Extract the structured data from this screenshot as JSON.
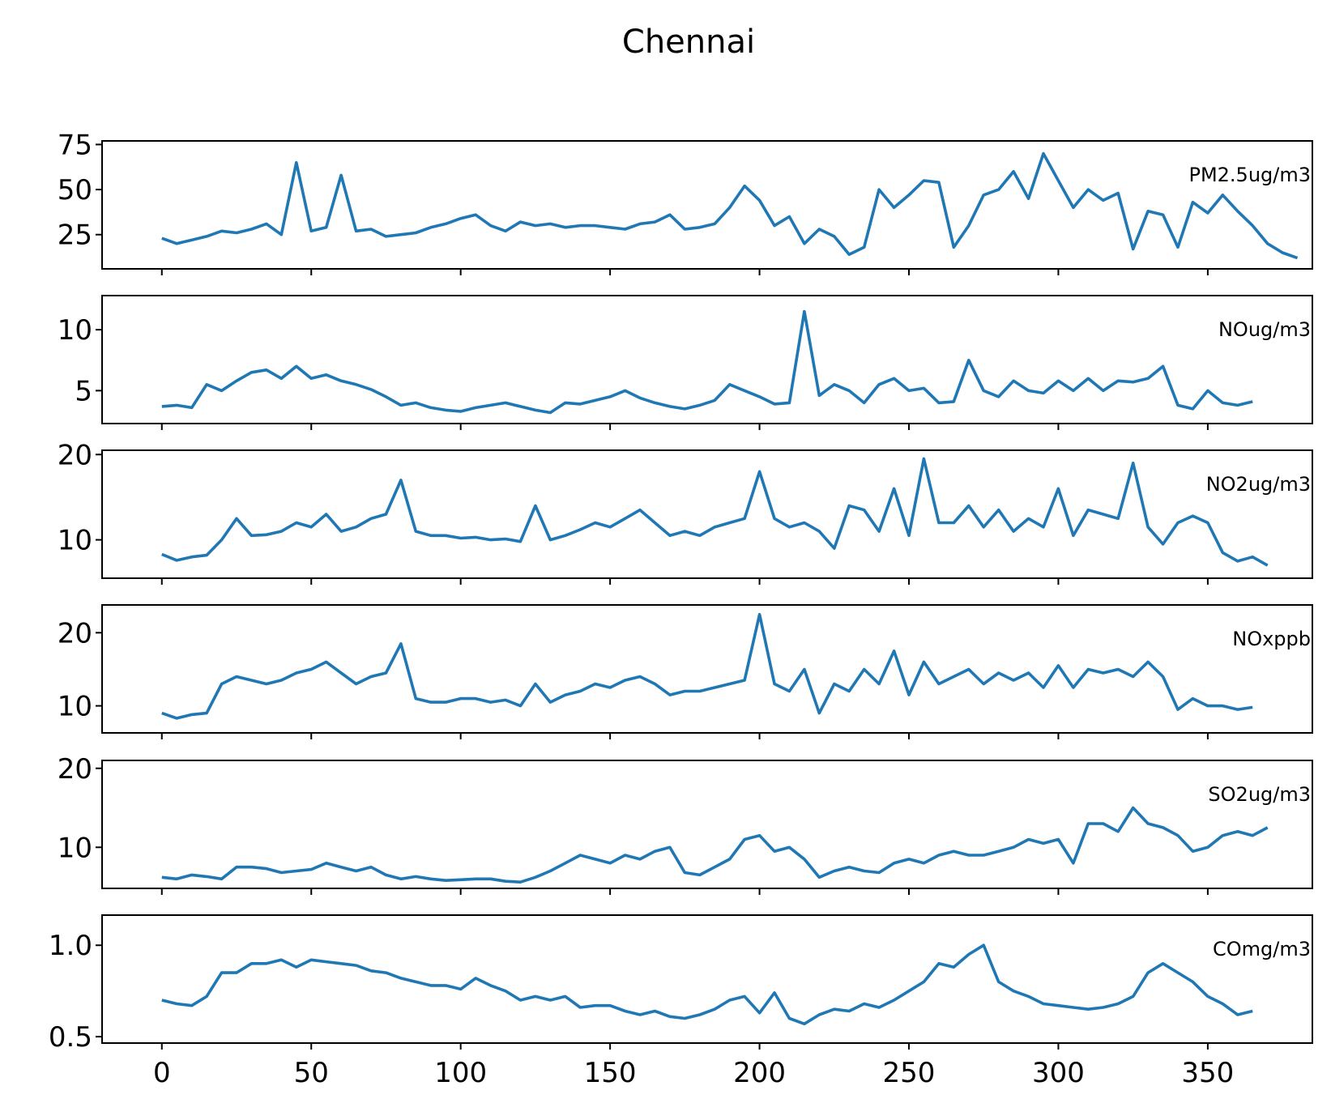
{
  "figure": {
    "title": "Chennai",
    "line_color": "#1f77b4"
  },
  "chart_data": [
    {
      "type": "line",
      "title": "",
      "xlabel": "",
      "ylabel": "",
      "xlim": [
        -20,
        385
      ],
      "ylim": [
        6,
        77
      ],
      "yticks": [
        25,
        50,
        75
      ],
      "xticks": [
        0,
        50,
        100,
        150,
        200,
        250,
        300,
        350
      ],
      "x_tick_labels_visible": false,
      "grid": false,
      "legend": "right",
      "series": [
        {
          "name": "PM2.5ug/m3",
          "x_start": 0,
          "x_step": 5,
          "values": [
            23,
            20,
            22,
            24,
            27,
            26,
            28,
            31,
            25,
            65,
            27,
            29,
            58,
            27,
            28,
            24,
            25,
            26,
            29,
            31,
            34,
            36,
            30,
            27,
            32,
            30,
            31,
            29,
            30,
            30,
            29,
            28,
            31,
            32,
            36,
            28,
            29,
            31,
            40,
            52,
            44,
            30,
            35,
            20,
            28,
            24,
            14,
            18,
            50,
            40,
            47,
            55,
            54,
            18,
            30,
            47,
            50,
            60,
            45,
            70,
            55,
            40,
            50,
            44,
            48,
            17,
            38,
            36,
            18,
            43,
            37,
            47,
            38,
            30,
            20,
            15,
            12
          ]
        }
      ]
    },
    {
      "type": "line",
      "title": "",
      "xlabel": "",
      "ylabel": "",
      "xlim": [
        -20,
        385
      ],
      "ylim": [
        2.3,
        12.8
      ],
      "yticks": [
        5,
        10
      ],
      "xticks": [
        0,
        50,
        100,
        150,
        200,
        250,
        300,
        350
      ],
      "x_tick_labels_visible": false,
      "grid": false,
      "legend": "right",
      "series": [
        {
          "name": "NOug/m3",
          "x_start": 0,
          "x_step": 5,
          "values": [
            3.7,
            3.8,
            3.6,
            5.5,
            5.0,
            5.8,
            6.5,
            6.7,
            6.0,
            7.0,
            6.0,
            6.3,
            5.8,
            5.5,
            5.1,
            4.5,
            3.8,
            4.0,
            3.6,
            3.4,
            3.3,
            3.6,
            3.8,
            4.0,
            3.7,
            3.4,
            3.2,
            4.0,
            3.9,
            4.2,
            4.5,
            5.0,
            4.4,
            4.0,
            3.7,
            3.5,
            3.8,
            4.2,
            5.5,
            5.0,
            4.5,
            3.9,
            4.0,
            11.5,
            4.6,
            5.5,
            5.0,
            4.0,
            5.5,
            6.0,
            5.0,
            5.2,
            4.0,
            4.1,
            7.5,
            5.0,
            4.5,
            5.8,
            5.0,
            4.8,
            5.8,
            5.0,
            6.0,
            5.0,
            5.8,
            5.7,
            6.0,
            7.0,
            3.8,
            3.5,
            5.0,
            4.0,
            3.8,
            4.1
          ]
        }
      ]
    },
    {
      "type": "line",
      "title": "",
      "xlabel": "",
      "ylabel": "",
      "xlim": [
        -20,
        385
      ],
      "ylim": [
        5.5,
        20.5
      ],
      "yticks": [
        10,
        20
      ],
      "xticks": [
        0,
        50,
        100,
        150,
        200,
        250,
        300,
        350
      ],
      "x_tick_labels_visible": false,
      "grid": false,
      "legend": "right",
      "series": [
        {
          "name": "NO2ug/m3",
          "x_start": 0,
          "x_step": 5,
          "values": [
            8.3,
            7.6,
            8.0,
            8.2,
            10.0,
            12.5,
            10.5,
            10.6,
            11.0,
            12.0,
            11.5,
            13.0,
            11.0,
            11.5,
            12.5,
            13.0,
            17.0,
            11.0,
            10.5,
            10.5,
            10.2,
            10.3,
            10.0,
            10.1,
            9.8,
            14.0,
            10.0,
            10.5,
            11.2,
            12.0,
            11.5,
            12.5,
            13.5,
            12.0,
            10.5,
            11.0,
            10.5,
            11.5,
            12.0,
            12.5,
            18.0,
            12.5,
            11.5,
            12.0,
            11.0,
            9.0,
            14.0,
            13.5,
            11.0,
            16.0,
            10.5,
            19.5,
            12.0,
            12.0,
            14.0,
            11.5,
            13.5,
            11.0,
            12.5,
            11.5,
            16.0,
            10.5,
            13.5,
            13.0,
            12.5,
            19.0,
            11.5,
            9.5,
            12.0,
            12.8,
            12.0,
            8.5,
            7.5,
            8.0,
            7.0
          ]
        }
      ]
    },
    {
      "type": "line",
      "title": "",
      "xlabel": "",
      "ylabel": "",
      "xlim": [
        -20,
        385
      ],
      "ylim": [
        6.3,
        23.8
      ],
      "yticks": [
        10,
        20
      ],
      "xticks": [
        0,
        50,
        100,
        150,
        200,
        250,
        300,
        350
      ],
      "x_tick_labels_visible": false,
      "grid": false,
      "legend": "right",
      "series": [
        {
          "name": "NOxppb",
          "x_start": 0,
          "x_step": 5,
          "values": [
            9.0,
            8.3,
            8.8,
            9.0,
            13.0,
            14.0,
            13.5,
            13.0,
            13.5,
            14.5,
            15.0,
            16.0,
            14.5,
            13.0,
            14.0,
            14.5,
            18.5,
            11.0,
            10.5,
            10.5,
            11.0,
            11.0,
            10.5,
            10.8,
            10.0,
            13.0,
            10.5,
            11.5,
            12.0,
            13.0,
            12.5,
            13.5,
            14.0,
            13.0,
            11.5,
            12.0,
            12.0,
            12.5,
            13.0,
            13.5,
            22.5,
            13.0,
            12.0,
            15.0,
            9.0,
            13.0,
            12.0,
            15.0,
            13.0,
            17.5,
            11.5,
            16.0,
            13.0,
            14.0,
            15.0,
            13.0,
            14.5,
            13.5,
            14.5,
            12.5,
            15.5,
            12.5,
            15.0,
            14.5,
            15.0,
            14.0,
            16.0,
            14.0,
            9.5,
            11.0,
            10.0,
            10.0,
            9.5,
            9.8
          ]
        }
      ]
    },
    {
      "type": "line",
      "title": "",
      "xlabel": "",
      "ylabel": "",
      "xlim": [
        -20,
        385
      ],
      "ylim": [
        4.8,
        21.0
      ],
      "yticks": [
        10,
        20
      ],
      "xticks": [
        0,
        50,
        100,
        150,
        200,
        250,
        300,
        350
      ],
      "x_tick_labels_visible": false,
      "grid": false,
      "legend": "right",
      "series": [
        {
          "name": "SO2ug/m3",
          "x_start": 0,
          "x_step": 5,
          "values": [
            6.2,
            6.0,
            6.5,
            6.3,
            6.0,
            7.5,
            7.5,
            7.3,
            6.8,
            7.0,
            7.2,
            8.0,
            7.5,
            7.0,
            7.5,
            6.5,
            6.0,
            6.3,
            6.0,
            5.8,
            5.9,
            6.0,
            6.0,
            5.7,
            5.6,
            6.2,
            7.0,
            8.0,
            9.0,
            8.5,
            8.0,
            9.0,
            8.5,
            9.5,
            10.0,
            6.8,
            6.5,
            7.5,
            8.5,
            11.0,
            11.5,
            9.5,
            10.0,
            8.5,
            6.2,
            7.0,
            7.5,
            7.0,
            6.8,
            8.0,
            8.5,
            8.0,
            9.0,
            9.5,
            9.0,
            9.0,
            9.5,
            10.0,
            11.0,
            10.5,
            11.0,
            8.0,
            13.0,
            13.0,
            12.0,
            15.0,
            13.0,
            12.5,
            11.5,
            9.5,
            10.0,
            11.5,
            12.0,
            11.5,
            12.5
          ]
        }
      ]
    },
    {
      "type": "line",
      "title": "",
      "xlabel": "",
      "ylabel": "",
      "xlim": [
        -20,
        385
      ],
      "ylim": [
        0.465,
        1.165
      ],
      "yticks": [
        0.5,
        1.0
      ],
      "ytick_labels": [
        "0.5",
        "1.0"
      ],
      "xticks": [
        0,
        50,
        100,
        150,
        200,
        250,
        300,
        350
      ],
      "xtick_labels": [
        "0",
        "50",
        "100",
        "150",
        "200",
        "250",
        "300",
        "350"
      ],
      "x_tick_labels_visible": true,
      "grid": false,
      "legend": "right",
      "series": [
        {
          "name": "COmg/m3",
          "x_start": 0,
          "x_step": 5,
          "values": [
            0.7,
            0.68,
            0.67,
            0.72,
            0.85,
            0.85,
            0.9,
            0.9,
            0.92,
            0.88,
            0.92,
            0.91,
            0.9,
            0.89,
            0.86,
            0.85,
            0.82,
            0.8,
            0.78,
            0.78,
            0.76,
            0.82,
            0.78,
            0.75,
            0.7,
            0.72,
            0.7,
            0.72,
            0.66,
            0.67,
            0.67,
            0.64,
            0.62,
            0.64,
            0.61,
            0.6,
            0.62,
            0.65,
            0.7,
            0.72,
            0.63,
            0.74,
            0.6,
            0.57,
            0.62,
            0.65,
            0.64,
            0.68,
            0.66,
            0.7,
            0.75,
            0.8,
            0.9,
            0.88,
            0.95,
            1.0,
            0.8,
            0.75,
            0.72,
            0.68,
            0.67,
            0.66,
            0.65,
            0.66,
            0.68,
            0.72,
            0.85,
            0.9,
            0.85,
            0.8,
            0.72,
            0.68,
            0.62,
            0.64
          ]
        }
      ]
    }
  ]
}
